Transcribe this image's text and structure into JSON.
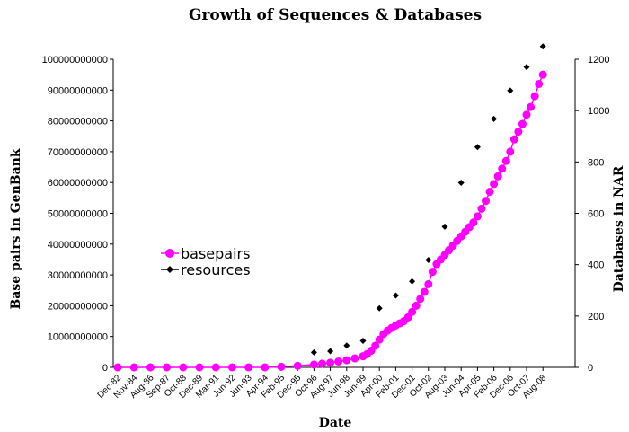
{
  "chart_data": {
    "type": "scatter",
    "title": "Growth of Sequences & Databases",
    "xlabel": "Date",
    "ylabel_left": "Base pairs in GenBank",
    "ylabel_right": "Databases in NAR",
    "ylim_left": [
      0,
      100000000000
    ],
    "ylim_right": [
      0,
      1200
    ],
    "yticks_left": [
      "0",
      "10000000000",
      "20000000000",
      "30000000000",
      "40000000000",
      "50000000000",
      "60000000000",
      "70000000000",
      "80000000000",
      "90000000000",
      "100000000000"
    ],
    "yticks_right": [
      "0",
      "200",
      "400",
      "600",
      "800",
      "1000",
      "1200"
    ],
    "categories": [
      "Dec-82",
      "Nov-84",
      "Aug-86",
      "Sep-87",
      "Oct-88",
      "Dec-89",
      "Mar-91",
      "Jun-92",
      "Jun-93",
      "Apr-94",
      "Feb-95",
      "Dec-95",
      "Oct-96",
      "Aug-97",
      "Jun-98",
      "Jun-99",
      "Apr-00",
      "Feb-01",
      "Dec-01",
      "Oct-02",
      "Aug-03",
      "Jun-04",
      "Apr-05",
      "Feb-06",
      "Dec-06",
      "Oct-07",
      "Aug-08"
    ],
    "legend_position": "middle-left",
    "grid": false,
    "series": [
      {
        "name": "basepairs",
        "axis": "left",
        "color": "#ff00ff",
        "marker": "circle",
        "x": [
          0,
          1,
          2,
          3,
          4,
          5,
          6,
          7,
          8,
          9,
          10,
          11,
          12,
          12.5,
          13,
          13.5,
          14,
          14.5,
          15,
          15.25,
          15.5,
          15.75,
          16,
          16.25,
          16.5,
          16.75,
          17,
          17.25,
          17.5,
          17.75,
          18,
          18.25,
          18.5,
          18.75,
          19,
          19.25,
          19.5,
          19.75,
          20,
          20.25,
          20.5,
          20.75,
          21,
          21.25,
          21.5,
          21.75,
          22,
          22.25,
          22.5,
          22.75,
          23,
          23.25,
          23.5,
          23.75,
          24,
          24.25,
          24.5,
          24.75,
          25,
          25.25,
          25.5,
          25.75,
          26
        ],
        "values": [
          0,
          0,
          0,
          0,
          0,
          0,
          0,
          0,
          0,
          0,
          200000000,
          500000000,
          900000000,
          1200000000,
          1500000000,
          1900000000,
          2300000000,
          2900000000,
          3600000000,
          4300000000,
          5400000000,
          7000000000,
          9000000000,
          10800000000,
          11900000000,
          12800000000,
          13600000000,
          14300000000,
          15000000000,
          16200000000,
          18000000000,
          20000000000,
          22200000000,
          24500000000,
          27000000000,
          31000000000,
          33500000000,
          35000000000,
          36500000000,
          38000000000,
          39500000000,
          41000000000,
          42500000000,
          44000000000,
          45500000000,
          47000000000,
          49000000000,
          51500000000,
          54000000000,
          57000000000,
          59500000000,
          62000000000,
          64500000000,
          67000000000,
          70000000000,
          74000000000,
          76500000000,
          79000000000,
          82000000000,
          84500000000,
          88000000000,
          92000000000,
          95000000000
        ]
      },
      {
        "name": "resources",
        "axis": "right",
        "color": "#000000",
        "marker": "diamond",
        "x": [
          12,
          13,
          14,
          15,
          16,
          17,
          18,
          19,
          20,
          21,
          22,
          23,
          24,
          25,
          26
        ],
        "values": [
          58,
          63,
          85,
          103,
          230,
          280,
          335,
          418,
          548,
          719,
          858,
          968,
          1078,
          1170,
          1250
        ]
      }
    ]
  }
}
